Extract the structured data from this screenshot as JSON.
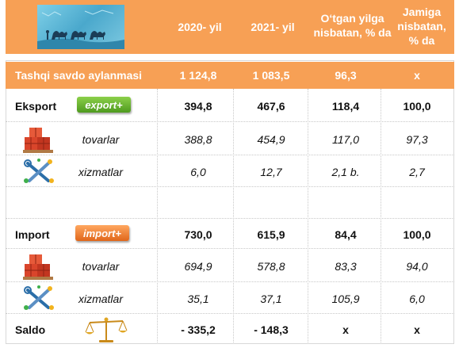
{
  "header": {
    "col_2020": "2020- yil",
    "col_2021": "2021- yil",
    "col_ratio": [
      "O‘tgan yilga",
      "nisbatan, % da"
    ],
    "col_share": [
      "Jamiga",
      "nisbatan,",
      "% da"
    ]
  },
  "rows": {
    "total": {
      "label": "Tashqi savdo aylanmasi",
      "v2020": "1 124,8",
      "v2021": "1 083,5",
      "ratio": "96,3",
      "share": "x"
    },
    "export": {
      "label": "Eksport",
      "tag": "export+",
      "v2020": "394,8",
      "v2021": "467,6",
      "ratio": "118,4",
      "share": "100,0"
    },
    "export_goods": {
      "label": "tovarlar",
      "v2020": "388,8",
      "v2021": "454,9",
      "ratio": "117,0",
      "share": "97,3"
    },
    "export_services": {
      "label": "xizmatlar",
      "v2020": "6,0",
      "v2021": "12,7",
      "ratio": "2,1 b.",
      "share": "2,7"
    },
    "import": {
      "label": "Import",
      "tag": "import+",
      "v2020": "730,0",
      "v2021": "615,9",
      "ratio": "84,4",
      "share": "100,0"
    },
    "import_goods": {
      "label": "tovarlar",
      "v2020": "694,9",
      "v2021": "578,8",
      "ratio": "83,3",
      "share": "94,0"
    },
    "import_services": {
      "label": "xizmatlar",
      "v2020": "35,1",
      "v2021": "37,1",
      "ratio": "105,9",
      "share": "6,0"
    },
    "saldo": {
      "label": "Saldo",
      "v2020": "- 335,2",
      "v2021": "- 148,3",
      "ratio": "x",
      "share": "x"
    }
  },
  "colors": {
    "accent": "#f7a055",
    "export_tag": "#5fae2a",
    "import_tag": "#f07a2a"
  },
  "icons": {
    "header": "camel-caravan-image",
    "goods": "stacked-crates-icon",
    "services": "tools-gears-icon",
    "saldo": "balance-scale-icon"
  }
}
